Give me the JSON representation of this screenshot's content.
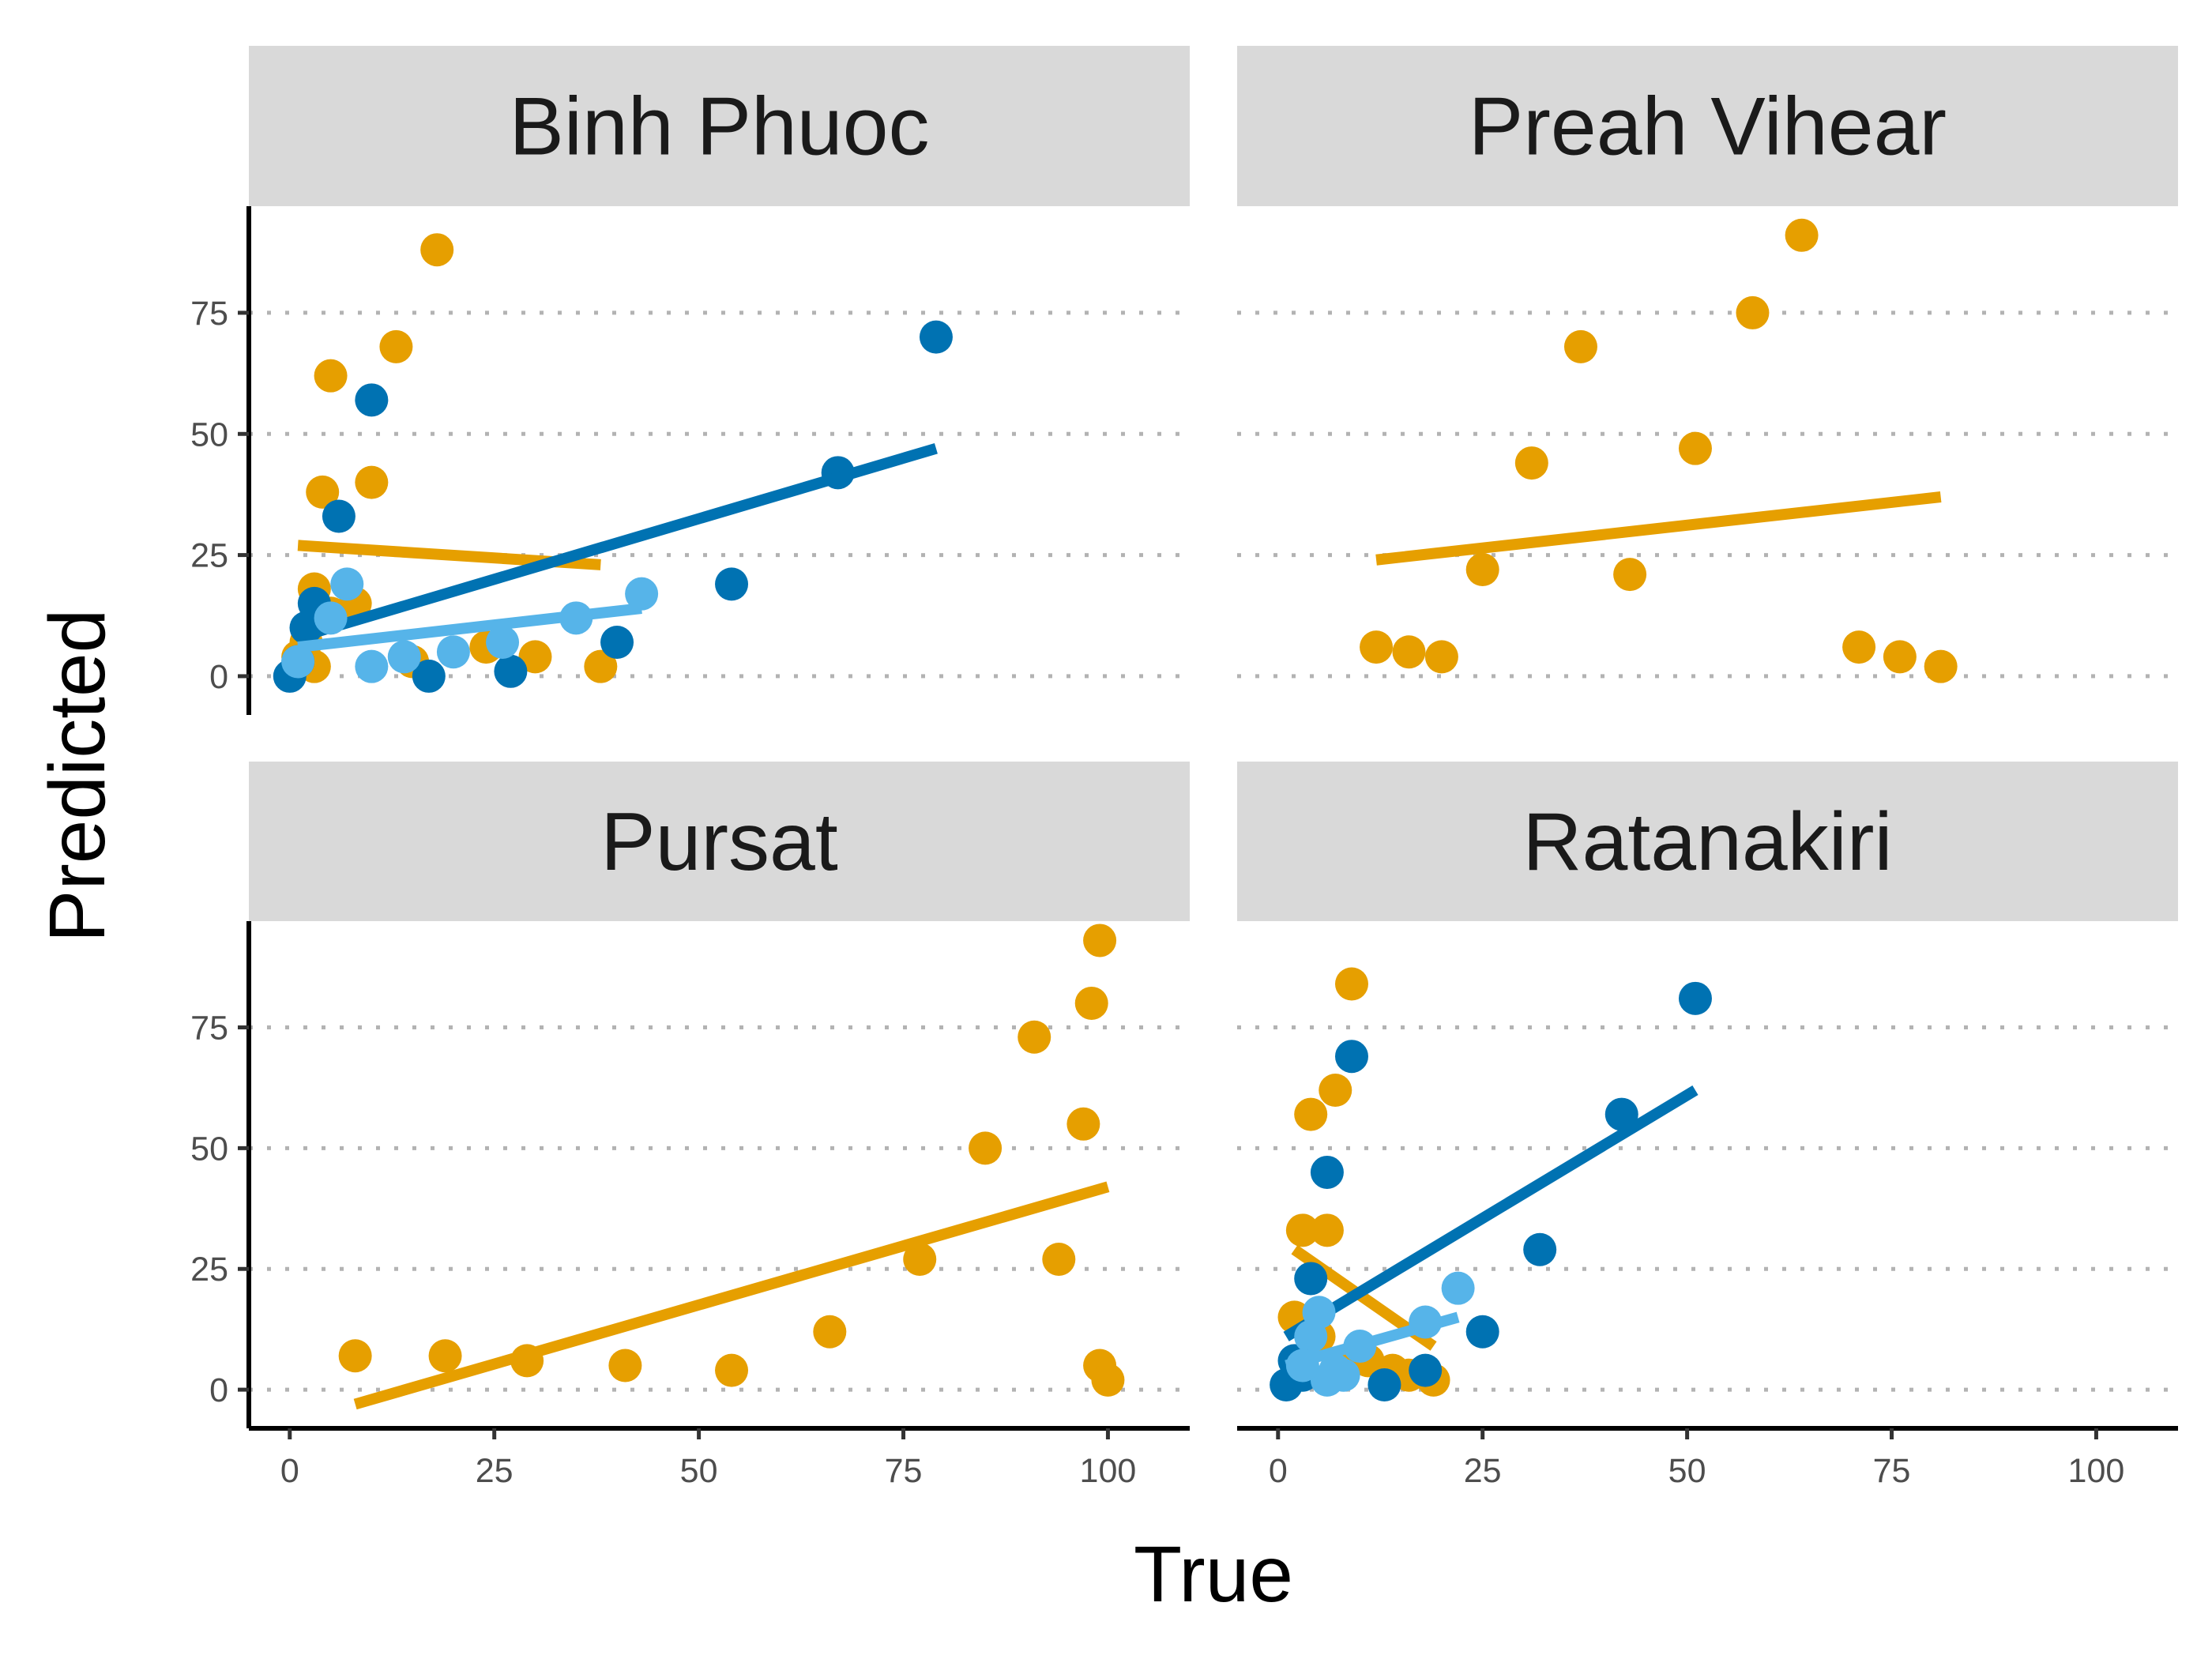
{
  "chart_data": {
    "type": "scatter",
    "layout": "facet-grid-2x2",
    "xlabel": "True",
    "ylabel": "Predicted",
    "xlim": [
      -5,
      110
    ],
    "ylim": [
      -8,
      97
    ],
    "x_ticks": [
      0,
      25,
      50,
      75,
      100
    ],
    "y_ticks": [
      0,
      25,
      50,
      75
    ],
    "grid": "horizontal-dotted",
    "legend": "none",
    "colors": {
      "orange": "#E69F00",
      "dark-blue": "#0072B2",
      "light-blue": "#56B4E9",
      "strip": "#D9D9D9",
      "gridline": "#B3B3B3"
    },
    "facets": [
      {
        "title": "Binh Phuoc",
        "groups": [
          {
            "color": "orange",
            "points": [
              [
                18,
                88
              ],
              [
                13,
                68
              ],
              [
                5,
                62
              ],
              [
                4,
                38
              ],
              [
                10,
                40
              ],
              [
                3,
                18
              ],
              [
                5,
                13
              ],
              [
                8,
                15
              ],
              [
                2,
                7
              ],
              [
                1,
                4
              ],
              [
                3,
                2
              ],
              [
                24,
                6
              ],
              [
                30,
                4
              ],
              [
                38,
                2
              ],
              [
                15,
                3
              ]
            ],
            "fit": [
              [
                1,
                27
              ],
              [
                38,
                23
              ]
            ]
          },
          {
            "color": "dark-blue",
            "points": [
              [
                79,
                70
              ],
              [
                67,
                42
              ],
              [
                54,
                19
              ],
              [
                10,
                57
              ],
              [
                6,
                33
              ],
              [
                3,
                15
              ],
              [
                2,
                10
              ],
              [
                40,
                7
              ],
              [
                27,
                1
              ],
              [
                17,
                0
              ],
              [
                0,
                0
              ],
              [
                1,
                3
              ]
            ],
            "fit": [
              [
                1,
                8
              ],
              [
                79,
                47
              ]
            ]
          },
          {
            "color": "light-blue",
            "points": [
              [
                43,
                17
              ],
              [
                35,
                12
              ],
              [
                7,
                19
              ],
              [
                10,
                2
              ],
              [
                14,
                4
              ],
              [
                20,
                5
              ],
              [
                26,
                7
              ],
              [
                5,
                12
              ],
              [
                1,
                3
              ]
            ],
            "fit": [
              [
                1,
                6
              ],
              [
                43,
                14
              ]
            ]
          }
        ]
      },
      {
        "title": "Preah Vihear",
        "groups": [
          {
            "color": "orange",
            "points": [
              [
                64,
                91
              ],
              [
                58,
                75
              ],
              [
                37,
                68
              ],
              [
                31,
                44
              ],
              [
                51,
                47
              ],
              [
                25,
                22
              ],
              [
                43,
                21
              ],
              [
                12,
                6
              ],
              [
                16,
                5
              ],
              [
                20,
                4
              ],
              [
                71,
                6
              ],
              [
                76,
                4
              ],
              [
                81,
                2
              ]
            ],
            "fit": [
              [
                12,
                24
              ],
              [
                81,
                37
              ]
            ]
          }
        ]
      },
      {
        "title": "Pursat",
        "groups": [
          {
            "color": "orange",
            "points": [
              [
                99,
                93
              ],
              [
                98,
                80
              ],
              [
                91,
                73
              ],
              [
                97,
                55
              ],
              [
                85,
                50
              ],
              [
                94,
                27
              ],
              [
                77,
                27
              ],
              [
                66,
                12
              ],
              [
                8,
                7
              ],
              [
                19,
                7
              ],
              [
                29,
                6
              ],
              [
                41,
                5
              ],
              [
                54,
                4
              ],
              [
                99,
                5
              ],
              [
                100,
                2
              ]
            ],
            "fit": [
              [
                8,
                -3
              ],
              [
                100,
                42
              ]
            ]
          }
        ]
      },
      {
        "title": "Ratanakiri",
        "groups": [
          {
            "color": "orange",
            "points": [
              [
                9,
                84
              ],
              [
                7,
                62
              ],
              [
                4,
                57
              ],
              [
                3,
                33
              ],
              [
                6,
                33
              ],
              [
                2,
                15
              ],
              [
                5,
                11
              ],
              [
                14,
                4
              ],
              [
                16,
                3
              ],
              [
                19,
                2
              ],
              [
                8,
                5
              ],
              [
                11,
                6
              ]
            ],
            "fit": [
              [
                2,
                29
              ],
              [
                19,
                9
              ]
            ]
          },
          {
            "color": "dark-blue",
            "points": [
              [
                51,
                81
              ],
              [
                9,
                69
              ],
              [
                42,
                57
              ],
              [
                6,
                45
              ],
              [
                32,
                29
              ],
              [
                4,
                23
              ],
              [
                25,
                12
              ],
              [
                18,
                4
              ],
              [
                13,
                1
              ],
              [
                1,
                1
              ],
              [
                2,
                6
              ],
              [
                3,
                3
              ]
            ],
            "fit": [
              [
                1,
                11
              ],
              [
                51,
                62
              ]
            ]
          },
          {
            "color": "light-blue",
            "points": [
              [
                22,
                21
              ],
              [
                18,
                14
              ],
              [
                5,
                16
              ],
              [
                4,
                11
              ],
              [
                10,
                9
              ],
              [
                7,
                4
              ],
              [
                6,
                2
              ],
              [
                8,
                3
              ],
              [
                3,
                5
              ]
            ],
            "fit": [
              [
                1,
                5
              ],
              [
                22,
                15
              ]
            ]
          }
        ]
      }
    ]
  }
}
